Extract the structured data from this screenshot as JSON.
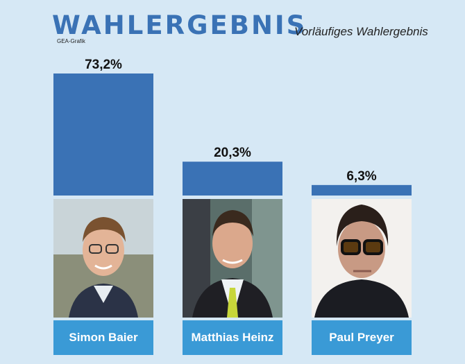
{
  "header": {
    "title": "WAHLERGEBNIS",
    "subtitle": "Vorläufiges Wahlergebnis",
    "source": "GEA-Grafik"
  },
  "colors": {
    "background": "#d6e8f5",
    "bar": "#3a72b5",
    "name_box": "#3a9ad6",
    "title": "#3a72b5"
  },
  "chart_data": {
    "type": "bar",
    "categories": [
      "Simon Baier",
      "Matthias Heinz",
      "Paul Preyer"
    ],
    "values": [
      73.2,
      20.3,
      6.3
    ],
    "value_labels": [
      "73,2%",
      "20,3%",
      "6,3%"
    ],
    "unit": "%",
    "ylim": [
      0,
      100
    ],
    "grid": false,
    "legend": "none"
  },
  "candidates": [
    {
      "name": "Simon Baier",
      "photo": "portrait-photo"
    },
    {
      "name": "Matthias Heinz",
      "photo": "portrait-photo"
    },
    {
      "name": "Paul Preyer",
      "photo": "portrait-photo"
    }
  ]
}
